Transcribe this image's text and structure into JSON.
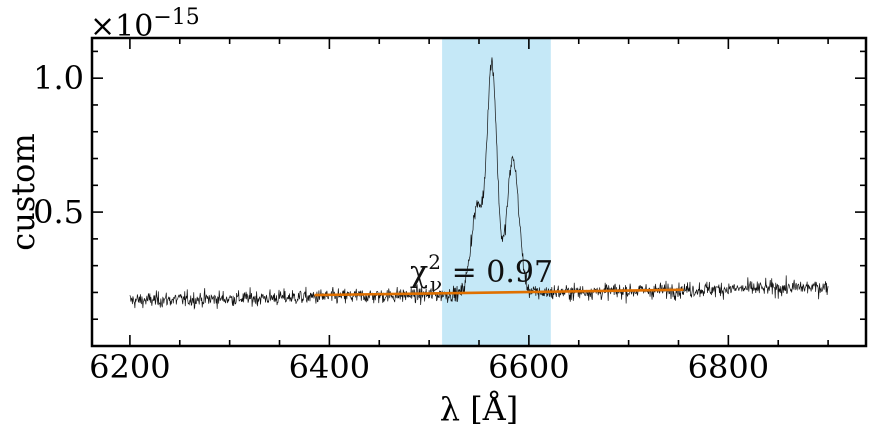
{
  "chart_data": {
    "type": "line",
    "xlabel": "λ [Å]",
    "ylabel": "custom",
    "xlim": [
      6162,
      6938
    ],
    "ylim": [
      0.0,
      1.15
    ],
    "y_scale_factor_label": "×10",
    "y_scale_exponent": "−15",
    "x_ticks": [
      6200,
      6400,
      6600,
      6800
    ],
    "x_tick_labels": [
      "6200",
      "6400",
      "6600",
      "6800"
    ],
    "y_ticks": [
      0.5,
      1.0
    ],
    "y_tick_labels": [
      "0.5",
      "1.0"
    ],
    "highlight_band": {
      "x0": 6513,
      "x1": 6622,
      "color": "#c5e8f7"
    },
    "annotation": {
      "text_main": "χ",
      "text_sup": "2",
      "text_sub": "ν",
      "text_rest": " = 0.97",
      "x": 6480,
      "y": 0.27
    },
    "series": [
      {
        "color": "#111111",
        "x_range": [
          6200,
          6900
        ],
        "baseline": [
          [
            6200,
            0.17
          ],
          [
            6900,
            0.22
          ]
        ],
        "peaks": [
          {
            "center": 6548,
            "amplitude": 0.32,
            "width": 6
          },
          {
            "center": 6563,
            "amplitude": 0.85,
            "width": 5
          },
          {
            "center": 6584,
            "amplitude": 0.5,
            "width": 6
          }
        ],
        "noise_sigma": 0.025
      },
      {
        "color": "#e07000",
        "points": [
          [
            6385,
            0.19
          ],
          [
            6755,
            0.21
          ]
        ]
      }
    ],
    "grid": false,
    "legend": "none"
  }
}
